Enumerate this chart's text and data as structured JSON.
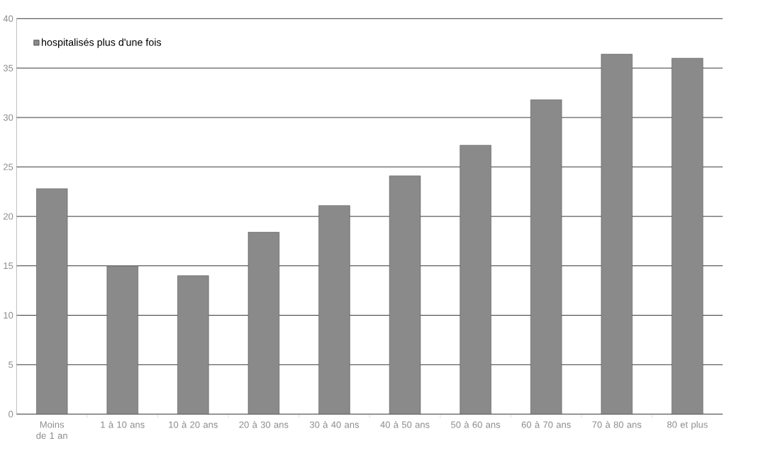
{
  "chart_data": {
    "type": "bar",
    "categories": [
      "Moins de 1 an",
      "1 à 10 ans",
      "10 à 20 ans",
      "20 à 30 ans",
      "30 à 40 ans",
      "40 à 50 ans",
      "50 à 60 ans",
      "60 à 70 ans",
      "70 à 80 ans",
      "80 et plus"
    ],
    "series": [
      {
        "name": "hospitalisés plus d'une fois",
        "color": "#8a8a8a",
        "values": [
          22.8,
          15.0,
          14.0,
          18.4,
          21.1,
          24.1,
          27.2,
          31.8,
          36.4,
          36.0
        ]
      }
    ],
    "ylim": [
      0,
      40
    ],
    "yticks": [
      0,
      5,
      10,
      15,
      20,
      25,
      30,
      35,
      40
    ],
    "grid": "y",
    "legend": "top left"
  }
}
